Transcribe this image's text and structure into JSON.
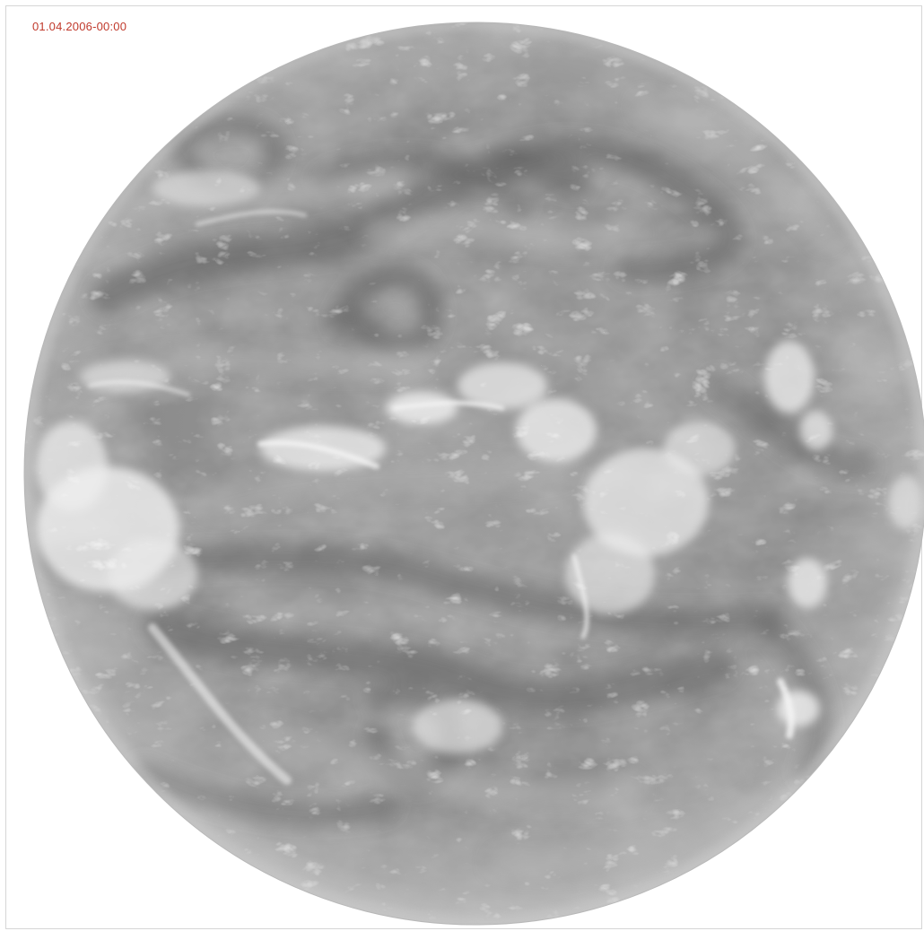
{
  "image": {
    "timestamp": "01.04.2006-00:00",
    "timestamp_color": "#c0392b",
    "subject": "full-disk-satellite-water-vapour-image",
    "palette": {
      "background": "#ffffff",
      "disk_base": "#8f8f8f",
      "dark_band": "#5e5e5e",
      "bright_cloud": "#efefef"
    }
  }
}
